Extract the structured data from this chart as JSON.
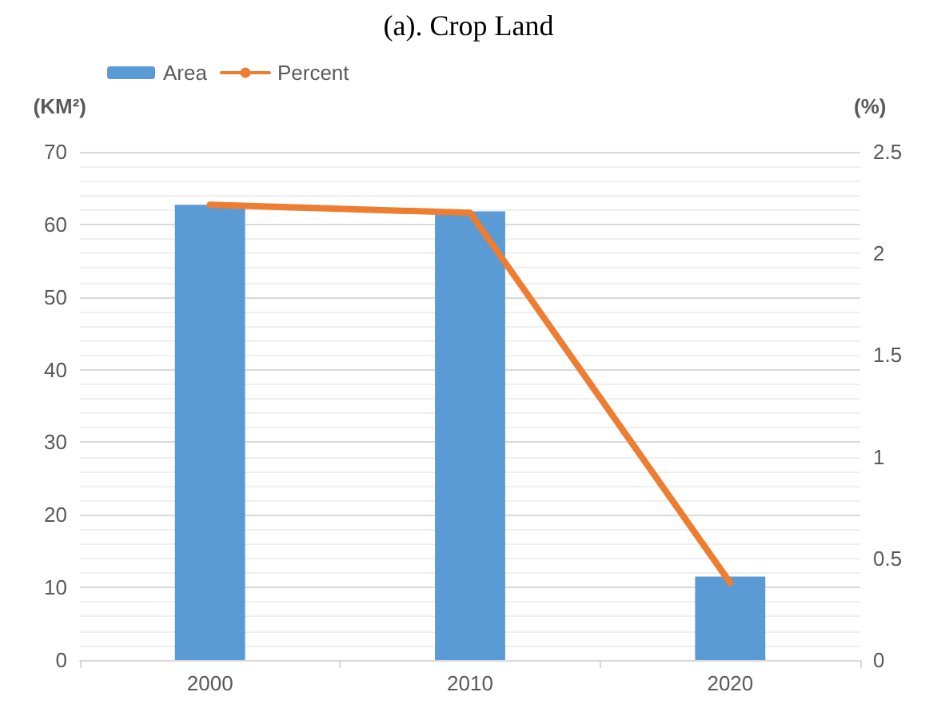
{
  "chart_data": {
    "type": "bar",
    "title": "(a). Crop Land",
    "ylabel": "(KM²)",
    "y2label": "(%)",
    "categories": [
      "2000",
      "2010",
      "2020"
    ],
    "series": [
      {
        "name": "Area",
        "color": "#5b9bd5",
        "values": [
          62.7,
          61.8,
          11.5
        ]
      },
      {
        "name": "Percent",
        "type": "line",
        "axis": "y2",
        "color": "#ed7d31",
        "values": [
          2.24,
          2.2,
          0.38
        ]
      }
    ],
    "ylim": [
      0,
      70
    ],
    "yticks": [
      0,
      10,
      20,
      30,
      40,
      50,
      60,
      70
    ],
    "y2lim": [
      0,
      2.5
    ],
    "y2ticks": [
      0,
      0.5,
      1,
      1.5,
      2,
      2.5
    ],
    "grid": "y",
    "legend": "top left",
    "marker": "none",
    "line_style": "solid"
  }
}
